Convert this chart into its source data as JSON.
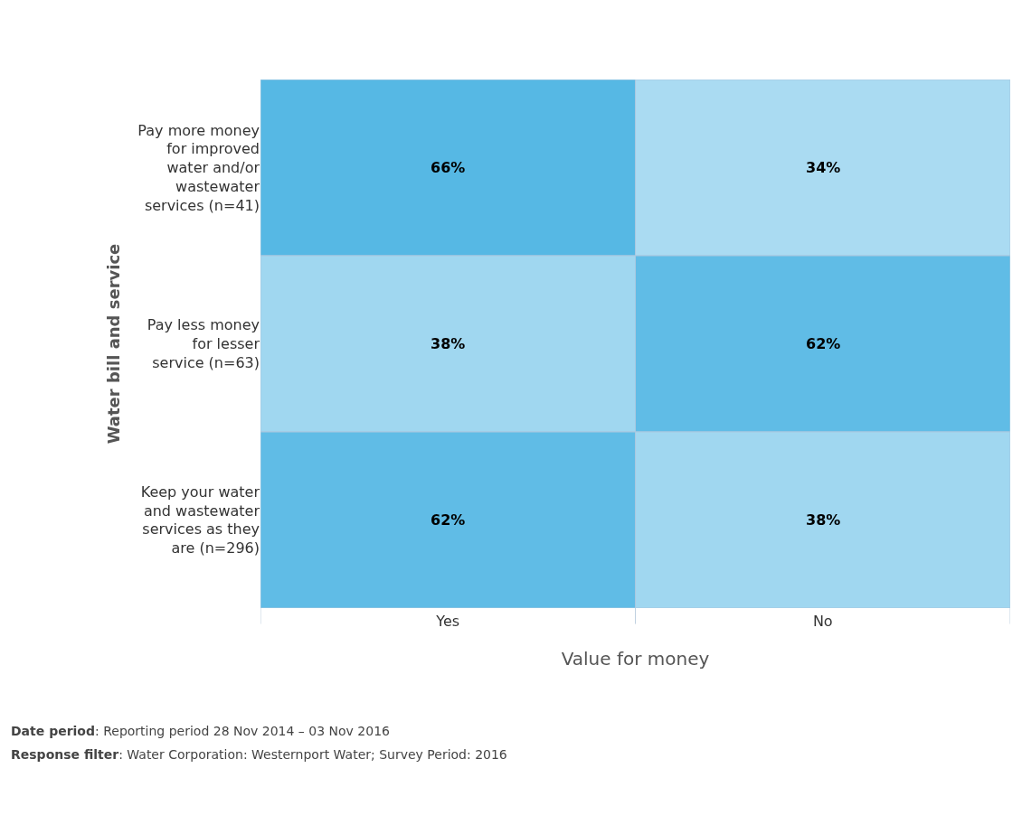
{
  "chart_data": {
    "type": "heatmap",
    "xlabel": "Value for money",
    "ylabel": "Water bill and service",
    "categories": [
      "Yes",
      "No"
    ],
    "y_categories": [
      "Pay more money for improved water and/or wastewater services (n=41)",
      "Pay less money for lesser service (n=63)",
      "Keep your water and wastewater services as they are (n=296)"
    ],
    "cells": [
      [
        66,
        34
      ],
      [
        38,
        62
      ],
      [
        62,
        38
      ]
    ],
    "cell_labels": [
      [
        "66%",
        "34%"
      ],
      [
        "38%",
        "62%"
      ],
      [
        "62%",
        "38%"
      ]
    ],
    "colors": [
      "#aadbf2",
      "#56b8e4"
    ],
    "annotations": [
      "Date period: Reporting period 28 Nov 2014 – 03 Nov 2016",
      "Response filter: Water Corporation: Westernport Water; Survey Period: 2016"
    ]
  }
}
